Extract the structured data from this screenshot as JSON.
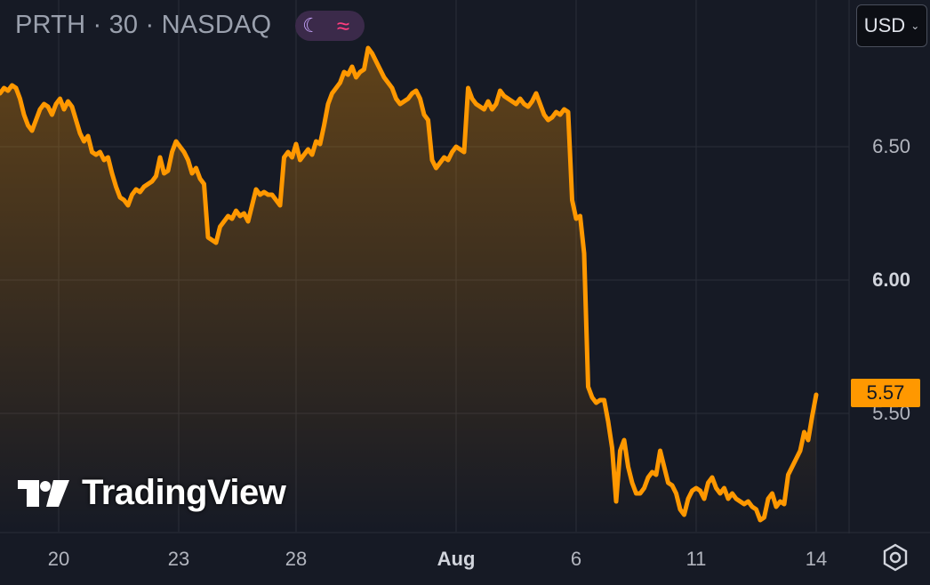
{
  "header": {
    "title": "PRTH · 30 · NASDAQ",
    "moon_icon": "moon-icon",
    "wave_icon": "wave-icon"
  },
  "currency": {
    "label": "USD"
  },
  "last_price": "5.57",
  "brand": {
    "name": "TradingView"
  },
  "colors": {
    "background": "#161a25",
    "line": "#ff9800",
    "grid": "#2a2e39",
    "tag": "#ff9800"
  },
  "chart_data": {
    "type": "area",
    "grid": true,
    "ylim": [
      5.05,
      6.8
    ],
    "yticks": [
      {
        "label": "6.50",
        "value": 6.5,
        "bold": false
      },
      {
        "label": "6.00",
        "value": 6.0,
        "bold": true
      },
      {
        "label": "5.50",
        "value": 5.5,
        "bold": false
      }
    ],
    "xticks": [
      {
        "label": "20",
        "bold": false
      },
      {
        "label": "23",
        "bold": false
      },
      {
        "label": "28",
        "bold": false
      },
      {
        "label": "Aug",
        "bold": true
      },
      {
        "label": "6",
        "bold": false
      },
      {
        "label": "11",
        "bold": false
      },
      {
        "label": "14",
        "bold": false
      }
    ],
    "series": [
      {
        "values": [
          6.7,
          6.72,
          6.71,
          6.73,
          6.72,
          6.68,
          6.62,
          6.58,
          6.56,
          6.6,
          6.64,
          6.66,
          6.65,
          6.62,
          6.66,
          6.68,
          6.64,
          6.67,
          6.65,
          6.6,
          6.55,
          6.52,
          6.54,
          6.48,
          6.47,
          6.48,
          6.45,
          6.46,
          6.4,
          6.35,
          6.31,
          6.3,
          6.28,
          6.32,
          6.34,
          6.33,
          6.35,
          6.36,
          6.37,
          6.39,
          6.46,
          6.4,
          6.41,
          6.48,
          6.52,
          6.5,
          6.48,
          6.45,
          6.4,
          6.42,
          6.38,
          6.36,
          6.16,
          6.15,
          6.14,
          6.2,
          6.22,
          6.24,
          6.23,
          6.26,
          6.24,
          6.25,
          6.22,
          6.28,
          6.34,
          6.32,
          6.33,
          6.32,
          6.32,
          6.3,
          6.28,
          6.46,
          6.48,
          6.46,
          6.51,
          6.45,
          6.47,
          6.49,
          6.47,
          6.52,
          6.51,
          6.58,
          6.66,
          6.7,
          6.72,
          6.74,
          6.78,
          6.77,
          6.8,
          6.76,
          6.78,
          6.79,
          6.87,
          6.85,
          6.82,
          6.79,
          6.76,
          6.74,
          6.72,
          6.68,
          6.66,
          6.67,
          6.68,
          6.7,
          6.71,
          6.68,
          6.62,
          6.6,
          6.45,
          6.42,
          6.44,
          6.46,
          6.45,
          6.48,
          6.5,
          6.49,
          6.48,
          6.72,
          6.68,
          6.66,
          6.65,
          6.64,
          6.67,
          6.64,
          6.66,
          6.71,
          6.69,
          6.68,
          6.67,
          6.66,
          6.68,
          6.66,
          6.65,
          6.67,
          6.7,
          6.66,
          6.62,
          6.6,
          6.61,
          6.63,
          6.62,
          6.64,
          6.63,
          6.3,
          6.23,
          6.24,
          6.1,
          5.6,
          5.56,
          5.54,
          5.55,
          5.55,
          5.47,
          5.37,
          5.17,
          5.36,
          5.4,
          5.3,
          5.24,
          5.2,
          5.2,
          5.22,
          5.26,
          5.28,
          5.27,
          5.36,
          5.3,
          5.24,
          5.23,
          5.2,
          5.14,
          5.12,
          5.18,
          5.21,
          5.22,
          5.21,
          5.18,
          5.24,
          5.26,
          5.22,
          5.2,
          5.22,
          5.18,
          5.2,
          5.18,
          5.17,
          5.16,
          5.17,
          5.15,
          5.14,
          5.1,
          5.11,
          5.18,
          5.2,
          5.15,
          5.17,
          5.16,
          5.27,
          5.3,
          5.33,
          5.36,
          5.43,
          5.4,
          5.49,
          5.57
        ]
      }
    ]
  }
}
